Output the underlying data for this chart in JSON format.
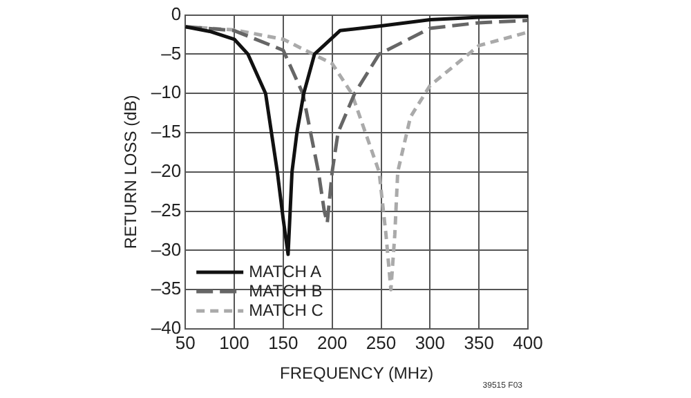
{
  "chart_data": {
    "type": "line",
    "xlabel": "FREQUENCY (MHz)",
    "ylabel": "RETURN LOSS (dB)",
    "xlim": [
      50,
      400
    ],
    "xticks": [
      50,
      100,
      150,
      200,
      250,
      300,
      350,
      400
    ],
    "ylim": [
      -40,
      0
    ],
    "yticks": [
      {
        "value": 0,
        "label": "0"
      },
      {
        "value": -5,
        "label": "–5"
      },
      {
        "value": -10,
        "label": "–10"
      },
      {
        "value": -15,
        "label": "–15"
      },
      {
        "value": -20,
        "label": "–20"
      },
      {
        "value": -25,
        "label": "–25"
      },
      {
        "value": -30,
        "label": "–30"
      },
      {
        "value": -35,
        "label": "–35"
      },
      {
        "value": -40,
        "label": "–40"
      }
    ],
    "grid": true,
    "legend": "bottom left",
    "marker": "none",
    "annotations": [
      "39515 F03"
    ],
    "series": [
      {
        "name": "MATCH A",
        "color": "#111111",
        "line_style": "solid",
        "x": [
          50,
          75,
          100,
          114,
          132,
          144,
          150,
          155,
          159,
          164,
          171,
          182,
          208,
          250,
          300,
          350,
          400
        ],
        "values": [
          -1.5,
          -2.1,
          -3.1,
          -5,
          -10,
          -20,
          -26,
          -30.5,
          -20,
          -15,
          -10,
          -5,
          -2,
          -1.4,
          -0.6,
          -0.3,
          -0.2
        ]
      },
      {
        "name": "MATCH B",
        "color": "#666666",
        "line_style": "dashed",
        "x": [
          50,
          100,
          150,
          170,
          186,
          192,
          195,
          200,
          206,
          223,
          248,
          300,
          350,
          400
        ],
        "values": [
          -1.5,
          -2,
          -4.5,
          -10,
          -20,
          -25,
          -26.5,
          -20,
          -15,
          -10,
          -5,
          -1.7,
          -1,
          -0.7
        ]
      },
      {
        "name": "MATCH C",
        "color": "#aaaaaa",
        "line_style": "dotted",
        "x": [
          50,
          100,
          150,
          200,
          220,
          248,
          255,
          260,
          264,
          267,
          280,
          295,
          300,
          350,
          400
        ],
        "values": [
          -1.5,
          -1.9,
          -3.1,
          -6.2,
          -10,
          -20,
          -28,
          -35,
          -28,
          -20,
          -13,
          -10,
          -9,
          -3.9,
          -2.2
        ]
      }
    ]
  }
}
